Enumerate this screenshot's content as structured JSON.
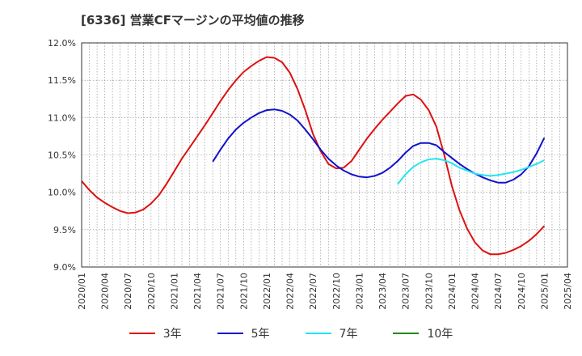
{
  "title": "[6336]  営業CFマージンの平均値の推移",
  "chart_data": {
    "type": "line",
    "title": "[6336]  営業CFマージンの平均値の推移",
    "xlabel": "",
    "ylabel": "",
    "ylim": [
      9.0,
      12.0
    ],
    "y_ticks": [
      "9.0%",
      "9.5%",
      "10.0%",
      "10.5%",
      "11.0%",
      "11.5%",
      "12.0%"
    ],
    "y_tick_values": [
      9.0,
      9.5,
      10.0,
      10.5,
      11.0,
      11.5,
      12.0
    ],
    "x_ticks": [
      "2020/01",
      "2020/04",
      "2020/07",
      "2020/10",
      "2021/01",
      "2021/04",
      "2021/07",
      "2021/10",
      "2022/01",
      "2022/04",
      "2022/07",
      "2022/10",
      "2023/01",
      "2023/04",
      "2023/07",
      "2023/10",
      "2024/01",
      "2024/04",
      "2024/07",
      "2024/10",
      "2025/01",
      "2025/04"
    ],
    "grid": true,
    "legend_position": "bottom",
    "series": [
      {
        "name": "3年",
        "color": "#dd1111",
        "x": [
          "2020/01",
          "2020/02",
          "2020/03",
          "2020/04",
          "2020/05",
          "2020/06",
          "2020/07",
          "2020/08",
          "2020/09",
          "2020/10",
          "2020/11",
          "2020/12",
          "2021/01",
          "2021/02",
          "2021/03",
          "2021/04",
          "2021/05",
          "2021/06",
          "2021/07",
          "2021/08",
          "2021/09",
          "2021/10",
          "2021/11",
          "2021/12",
          "2022/01",
          "2022/02",
          "2022/03",
          "2022/04",
          "2022/05",
          "2022/06",
          "2022/07",
          "2022/08",
          "2022/09",
          "2022/10",
          "2022/11",
          "2022/12",
          "2023/01",
          "2023/02",
          "2023/03",
          "2023/04",
          "2023/05",
          "2023/06",
          "2023/07",
          "2023/08",
          "2023/09",
          "2023/10",
          "2023/11",
          "2023/12",
          "2024/01",
          "2024/02",
          "2024/03",
          "2024/04",
          "2024/05",
          "2024/06",
          "2024/07",
          "2024/08",
          "2024/09",
          "2024/10",
          "2024/11",
          "2024/12",
          "2025/01"
        ],
        "values": [
          10.15,
          10.03,
          9.93,
          9.86,
          9.8,
          9.75,
          9.72,
          9.73,
          9.77,
          9.85,
          9.96,
          10.11,
          10.28,
          10.45,
          10.6,
          10.75,
          10.9,
          11.06,
          11.22,
          11.37,
          11.5,
          11.61,
          11.69,
          11.76,
          11.81,
          11.8,
          11.74,
          11.6,
          11.38,
          11.1,
          10.78,
          10.55,
          10.38,
          10.32,
          10.33,
          10.42,
          10.57,
          10.72,
          10.85,
          10.97,
          11.08,
          11.19,
          11.29,
          11.31,
          11.24,
          11.1,
          10.88,
          10.51,
          10.09,
          9.76,
          9.51,
          9.33,
          9.22,
          9.17,
          9.17,
          9.19,
          9.23,
          9.28,
          9.35,
          9.44,
          9.55
        ]
      },
      {
        "name": "5年",
        "color": "#1111cc",
        "x": [
          "2021/06",
          "2021/07",
          "2021/08",
          "2021/09",
          "2021/10",
          "2021/11",
          "2021/12",
          "2022/01",
          "2022/02",
          "2022/03",
          "2022/04",
          "2022/05",
          "2022/06",
          "2022/07",
          "2022/08",
          "2022/09",
          "2022/10",
          "2022/11",
          "2022/12",
          "2023/01",
          "2023/02",
          "2023/03",
          "2023/04",
          "2023/05",
          "2023/06",
          "2023/07",
          "2023/08",
          "2023/09",
          "2023/10",
          "2023/11",
          "2023/12",
          "2024/01",
          "2024/02",
          "2024/03",
          "2024/04",
          "2024/05",
          "2024/06",
          "2024/07",
          "2024/08",
          "2024/09",
          "2024/10",
          "2024/11",
          "2024/12",
          "2025/01"
        ],
        "values": [
          10.41,
          10.57,
          10.72,
          10.84,
          10.93,
          11.0,
          11.06,
          11.1,
          11.11,
          11.09,
          11.04,
          10.96,
          10.84,
          10.71,
          10.57,
          10.45,
          10.36,
          10.29,
          10.24,
          10.21,
          10.2,
          10.22,
          10.26,
          10.33,
          10.42,
          10.53,
          10.62,
          10.66,
          10.66,
          10.63,
          10.54,
          10.46,
          10.38,
          10.31,
          10.25,
          10.2,
          10.16,
          10.13,
          10.13,
          10.17,
          10.24,
          10.35,
          10.52,
          10.73
        ]
      },
      {
        "name": "7年",
        "color": "#22e5f0",
        "x": [
          "2023/06",
          "2023/07",
          "2023/08",
          "2023/09",
          "2023/10",
          "2023/11",
          "2023/12",
          "2024/01",
          "2024/02",
          "2024/03",
          "2024/04",
          "2024/05",
          "2024/06",
          "2024/07",
          "2024/08",
          "2024/09",
          "2024/10",
          "2024/11",
          "2024/12",
          "2025/01"
        ],
        "values": [
          10.11,
          10.24,
          10.34,
          10.4,
          10.44,
          10.45,
          10.43,
          10.39,
          10.33,
          10.29,
          10.25,
          10.23,
          10.22,
          10.23,
          10.25,
          10.27,
          10.3,
          10.34,
          10.38,
          10.43
        ]
      },
      {
        "name": "10年",
        "color": "#228822",
        "x": [],
        "values": []
      }
    ]
  }
}
